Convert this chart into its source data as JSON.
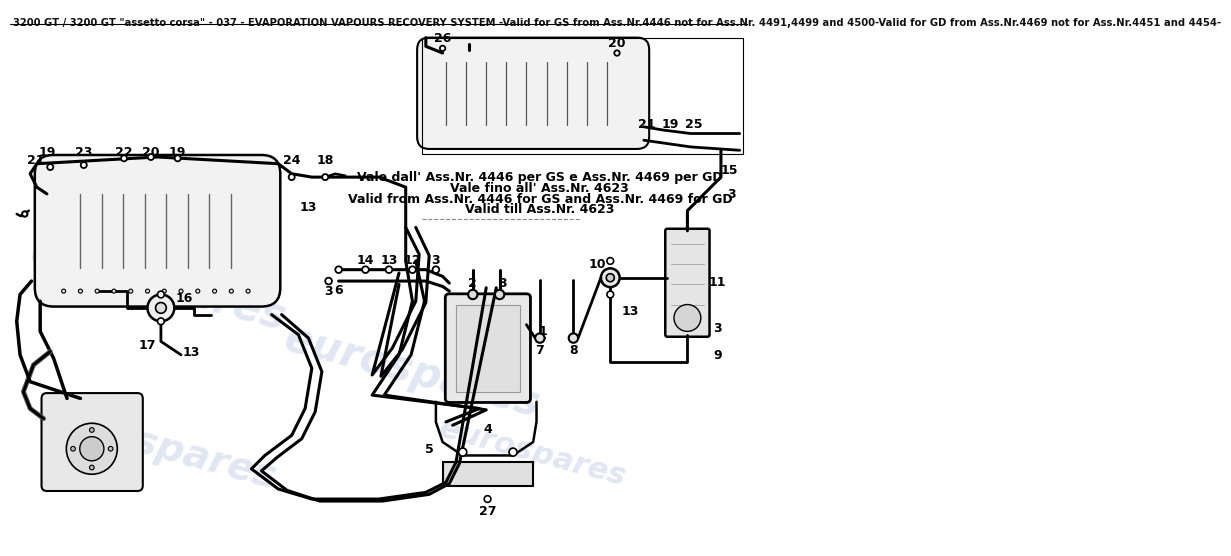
{
  "title": "3200 GT / 3200 GT \"assetto corsa\" - 037 - EVAPORATION VAPOURS RECOVERY SYSTEM -Valid for GS from Ass.Nr.4446 not for Ass.Nr. 4491,4499 and 4500-Valid for GD from Ass.Nr.4469 not for Ass.Nr.4451 and 4454-",
  "bg_color": "#ffffff",
  "watermark_text": "eurospares",
  "watermark_color": "#c8d4e8",
  "note_line1": "Vale dall' Ass.Nr. 4446 per GS e Ass.Nr. 4469 per GD",
  "note_line2": "Vale fino all' Ass.Nr. 4623",
  "note_line3": "Valid from Ass.Nr. 4446 for GS and Ass.Nr. 4469 for GD",
  "note_line4": "Valid till Ass.Nr. 4623",
  "title_fontsize": 7.2,
  "label_fontsize": 9.0
}
